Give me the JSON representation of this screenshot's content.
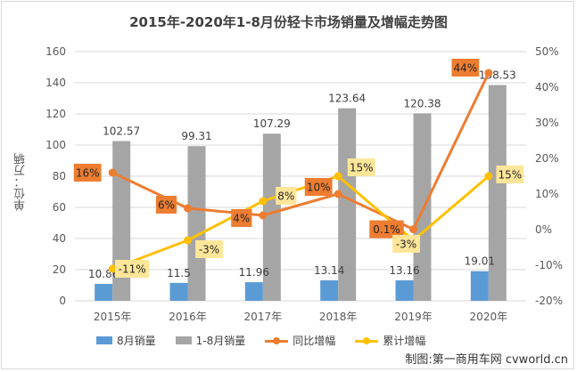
{
  "chart_data": {
    "type": "bar",
    "title": "2015年-2020年1-8月份轻卡市场销量及增幅走势图",
    "ylabel": "单位：万辆",
    "categories": [
      "2015年",
      "2016年",
      "2017年",
      "2018年",
      "2019年",
      "2020年"
    ],
    "ylim": [
      0,
      160
    ],
    "y_ticks": [
      "0",
      "20",
      "40",
      "60",
      "80",
      "100",
      "120",
      "140",
      "160"
    ],
    "y2lim": [
      -20,
      50
    ],
    "y2_ticks": [
      "-20%",
      "-10%",
      "0%",
      "10%",
      "20%",
      "30%",
      "40%",
      "50%"
    ],
    "series": [
      {
        "name": "8月销量",
        "type": "bar",
        "color": "#5b9bd5",
        "values": [
          10.86,
          11.5,
          11.96,
          13.14,
          13.16,
          19.01
        ],
        "labels": [
          "10.86",
          "11.5",
          "11.96",
          "13.14",
          "13.16",
          "19.01"
        ]
      },
      {
        "name": "1-8月销量",
        "type": "bar",
        "color": "#a5a5a5",
        "values": [
          102.57,
          99.31,
          107.29,
          123.64,
          120.38,
          138.53
        ],
        "labels": [
          "102.57",
          "99.31",
          "107.29",
          "123.64",
          "120.38",
          "138.53"
        ]
      },
      {
        "name": "同比增幅",
        "type": "line",
        "axis": "right",
        "color": "#ed7d31",
        "label_bg": "#ed7d31",
        "values": [
          16,
          6,
          4,
          10,
          0.1,
          44
        ],
        "labels": [
          "16%",
          "6%",
          "4%",
          "10%",
          "0.1%",
          "44%"
        ]
      },
      {
        "name": "累计增幅",
        "type": "line",
        "axis": "right",
        "color": "#ffc000",
        "label_bg": "#ffe699",
        "values": [
          -11,
          -3,
          8,
          15,
          -3,
          15
        ],
        "labels": [
          "-11%",
          "-3%",
          "8%",
          "15%",
          "-3%",
          "15%"
        ]
      }
    ],
    "grid": true,
    "legend_position": "bottom"
  },
  "credit": "制图:第一商用车网 cvworld.cn"
}
